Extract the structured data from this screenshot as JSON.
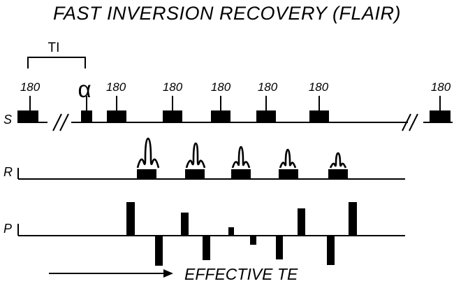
{
  "title": "FAST INVERSION RECOVERY (FLAIR)",
  "ti_label": "TI",
  "alpha_label": "α",
  "pulse_labels": {
    "first": "180",
    "second": "180",
    "third": "180",
    "fourth": "180",
    "fifth": "180",
    "sixth": "180",
    "last": "180"
  },
  "rows": {
    "slice": "S",
    "readout": "R",
    "phase": "P"
  },
  "effective_te_label": "EFFECTIVE TE"
}
